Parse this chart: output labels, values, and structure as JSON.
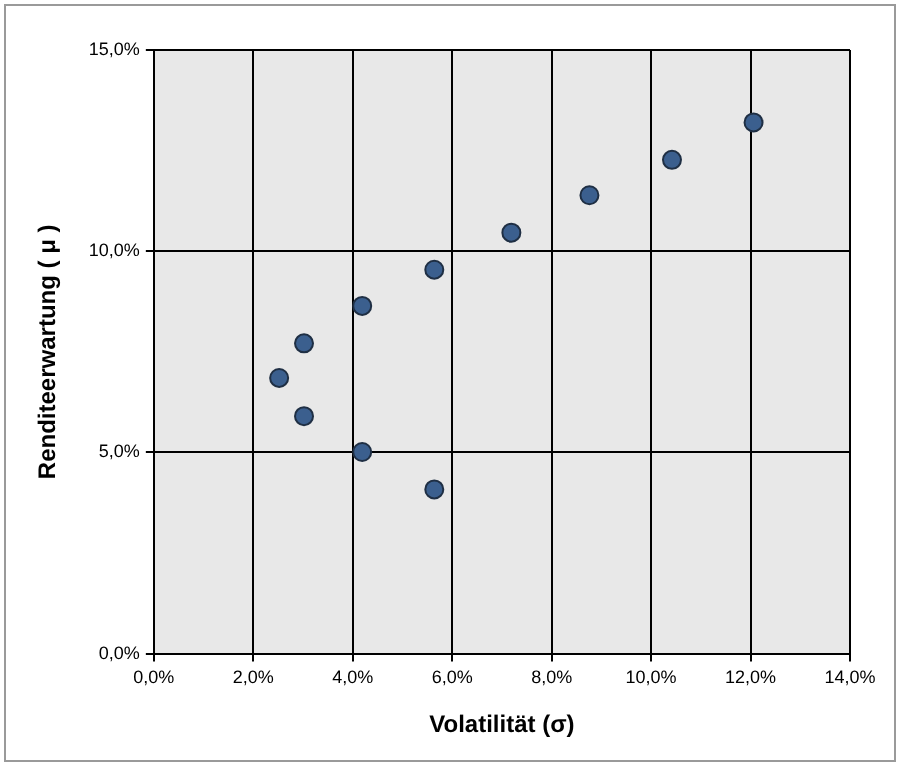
{
  "chart_data": {
    "type": "scatter",
    "xlabel": "Volatilität (σ)",
    "ylabel": "Renditeerwartung ( μ )",
    "x": [
      2.52,
      3.02,
      3.02,
      4.19,
      4.19,
      5.64,
      5.64,
      7.19,
      8.76,
      10.42,
      12.06
    ],
    "series": [
      {
        "color": "#3b5f8e",
        "values": [
          6.85,
          7.71,
          5.9,
          8.64,
          5.01,
          9.54,
          4.08,
          10.46,
          11.39,
          12.27,
          13.2
        ]
      }
    ],
    "xlim": [
      0,
      14
    ],
    "xticks": [
      {
        "value": 0,
        "label": "0,0%"
      },
      {
        "value": 2,
        "label": "2,0%"
      },
      {
        "value": 4,
        "label": "4,0%"
      },
      {
        "value": 6,
        "label": "6,0%"
      },
      {
        "value": 8,
        "label": "8,0%"
      },
      {
        "value": 10,
        "label": "10,0%"
      },
      {
        "value": 12,
        "label": "12,0%"
      },
      {
        "value": 14,
        "label": "14,0%"
      }
    ],
    "ylim": [
      0,
      15
    ],
    "yticks": [
      {
        "value": 0,
        "label": "0,0%"
      },
      {
        "value": 5,
        "label": "5,0%"
      },
      {
        "value": 10,
        "label": "10,0%"
      },
      {
        "value": 15,
        "label": "15,0%"
      }
    ],
    "grid": true,
    "legend": false,
    "marker": "circle"
  }
}
